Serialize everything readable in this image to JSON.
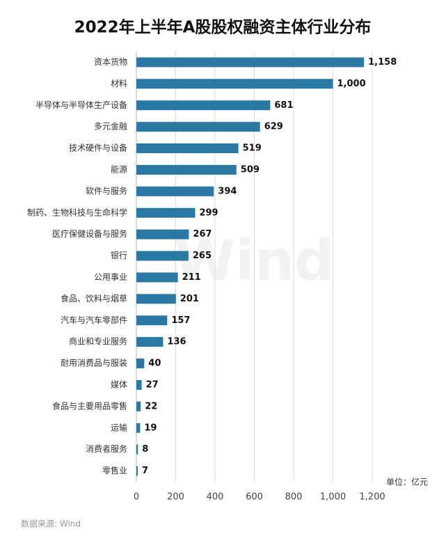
{
  "chart_data": {
    "type": "hbar",
    "title": "2022年上半年A股股权融资主体行业分布",
    "categories": [
      "资本货物",
      "材料",
      "半导体与半导体生产设备",
      "多元金融",
      "技术硬件与设备",
      "能源",
      "软件与服务",
      "制药、生物科技与生命科学",
      "医疗保健设备与服务",
      "银行",
      "公用事业",
      "食品、饮料与烟草",
      "汽车与汽车零部件",
      "商业和专业服务",
      "耐用消费品与服装",
      "媒体",
      "食品与主要用品零售",
      "运输",
      "消费者服务",
      "零售业"
    ],
    "values": [
      1158,
      1000,
      681,
      629,
      519,
      509,
      394,
      299,
      267,
      265,
      211,
      201,
      157,
      136,
      40,
      27,
      22,
      19,
      8,
      7
    ],
    "value_labels": [
      "1,158",
      "1,000",
      "681",
      "629",
      "519",
      "509",
      "394",
      "299",
      "267",
      "265",
      "211",
      "201",
      "157",
      "136",
      "40",
      "27",
      "22",
      "19",
      "8",
      "7"
    ],
    "color": "#2a79a5",
    "xlim": [
      0,
      1200
    ],
    "xticks": [
      0,
      200,
      400,
      600,
      800,
      {
        "value": 1000,
        "label": "1,000"
      },
      {
        "value": 1200,
        "label": "1,200"
      }
    ],
    "grid": true,
    "unit": "单位：亿元",
    "source": "数据来源: Wind",
    "watermark": "Wind"
  }
}
